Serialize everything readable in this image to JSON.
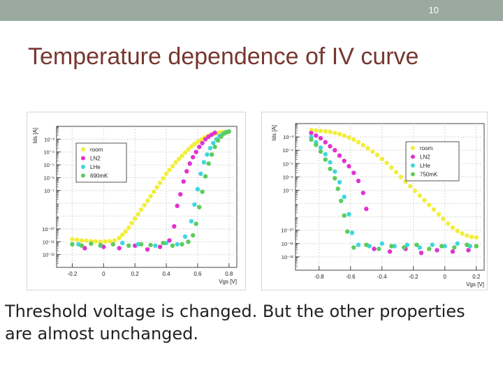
{
  "slide": {
    "page_number": "10",
    "title": "Temperature dependence of IV curve",
    "caption": "Threshold voltage is changed. But the other properties are almost unchanged."
  },
  "colors": {
    "header_bar": "#9aaaa1",
    "title": "#77372f",
    "room": "#f2ee3a",
    "LN2": "#e033cf",
    "LHe": "#3fd6e0",
    "cold": "#5ccc5c"
  },
  "chart_data": [
    {
      "type": "scatter",
      "ylabel": "Ids [A]",
      "xlabel": "Vgs [V]",
      "y_scale": "log",
      "xlim": [
        -0.3,
        0.85
      ],
      "ylim_exp": [
        -13,
        -2
      ],
      "x_ticks": [
        -0.2,
        0,
        0.2,
        0.4,
        0.6,
        0.8
      ],
      "x_tick_labels": [
        "-0.2",
        "0",
        "0.2",
        "0.4",
        "0.6",
        "0.8"
      ],
      "y_tick_exps": [
        -12,
        -11,
        -10,
        -7,
        -6,
        -5,
        -4,
        -3
      ],
      "y_tick_labels": [
        "10⁻¹²",
        "10⁻¹¹",
        "10⁻¹⁰",
        "10⁻⁷",
        "10⁻⁶",
        "10⁻⁵",
        "10⁻⁴",
        "10⁻³"
      ],
      "legend_position": "top-left",
      "grid": true,
      "series": [
        {
          "name": "room",
          "color": "#f2ee3a",
          "points": [
            [
              -0.2,
              -10.8
            ],
            [
              -0.17,
              -10.85
            ],
            [
              -0.14,
              -10.9
            ],
            [
              -0.11,
              -10.92
            ],
            [
              -0.08,
              -10.95
            ],
            [
              -0.05,
              -10.97
            ],
            [
              -0.02,
              -11.0
            ],
            [
              0.01,
              -10.98
            ],
            [
              0.04,
              -10.95
            ],
            [
              0.07,
              -10.9
            ],
            [
              0.1,
              -10.7
            ],
            [
              0.12,
              -10.45
            ],
            [
              0.14,
              -10.2
            ],
            [
              0.16,
              -9.9
            ],
            [
              0.18,
              -9.55
            ],
            [
              0.2,
              -9.2
            ],
            [
              0.22,
              -8.85
            ],
            [
              0.24,
              -8.5
            ],
            [
              0.26,
              -8.15
            ],
            [
              0.28,
              -7.8
            ],
            [
              0.3,
              -7.45
            ],
            [
              0.32,
              -7.1
            ],
            [
              0.34,
              -6.75
            ],
            [
              0.36,
              -6.4
            ],
            [
              0.38,
              -6.05
            ],
            [
              0.4,
              -5.7
            ],
            [
              0.42,
              -5.4
            ],
            [
              0.44,
              -5.1
            ],
            [
              0.46,
              -4.8
            ],
            [
              0.48,
              -4.55
            ],
            [
              0.5,
              -4.3
            ],
            [
              0.52,
              -4.05
            ],
            [
              0.54,
              -3.8
            ],
            [
              0.56,
              -3.58
            ],
            [
              0.58,
              -3.38
            ],
            [
              0.6,
              -3.2
            ],
            [
              0.62,
              -3.05
            ],
            [
              0.64,
              -2.9
            ],
            [
              0.66,
              -2.78
            ],
            [
              0.68,
              -2.68
            ],
            [
              0.7,
              -2.6
            ],
            [
              0.72,
              -2.53
            ],
            [
              0.74,
              -2.48
            ],
            [
              0.76,
              -2.44
            ],
            [
              0.78,
              -2.42
            ]
          ]
        },
        {
          "name": "LN2",
          "color": "#e033cf",
          "points": [
            [
              -0.12,
              -11.5
            ],
            [
              0.0,
              -11.4
            ],
            [
              0.1,
              -11.5
            ],
            [
              0.2,
              -11.3
            ],
            [
              0.28,
              -11.6
            ],
            [
              0.36,
              -11.4
            ],
            [
              0.42,
              -10.9
            ],
            [
              0.45,
              -9.8
            ],
            [
              0.47,
              -8.2
            ],
            [
              0.49,
              -7.3
            ],
            [
              0.51,
              -6.3
            ],
            [
              0.53,
              -5.5
            ],
            [
              0.55,
              -4.9
            ],
            [
              0.57,
              -4.4
            ],
            [
              0.59,
              -4.0
            ],
            [
              0.61,
              -3.6
            ],
            [
              0.63,
              -3.3
            ],
            [
              0.65,
              -3.0
            ],
            [
              0.67,
              -2.8
            ],
            [
              0.69,
              -2.65
            ],
            [
              0.71,
              -2.5
            ]
          ]
        },
        {
          "name": "LHe",
          "color": "#3fd6e0",
          "points": [
            [
              -0.16,
              -11.2
            ],
            [
              -0.02,
              -11.3
            ],
            [
              0.12,
              -11.1
            ],
            [
              0.22,
              -11.2
            ],
            [
              0.33,
              -11.3
            ],
            [
              0.4,
              -11.1
            ],
            [
              0.47,
              -11.2
            ],
            [
              0.52,
              -10.6
            ],
            [
              0.56,
              -9.4
            ],
            [
              0.58,
              -8.1
            ],
            [
              0.6,
              -6.9
            ],
            [
              0.62,
              -5.7
            ],
            [
              0.64,
              -4.8
            ],
            [
              0.66,
              -4.2
            ],
            [
              0.68,
              -3.7
            ],
            [
              0.7,
              -3.3
            ],
            [
              0.72,
              -3.0
            ],
            [
              0.74,
              -2.75
            ],
            [
              0.76,
              -2.6
            ],
            [
              0.78,
              -2.45
            ]
          ]
        },
        {
          "name": "690mK",
          "color": "#5ccc5c",
          "points": [
            [
              -0.2,
              -11.2
            ],
            [
              -0.14,
              -11.3
            ],
            [
              -0.08,
              -11.15
            ],
            [
              -0.02,
              -11.25
            ],
            [
              0.06,
              -11.2
            ],
            [
              0.16,
              -11.3
            ],
            [
              0.24,
              -11.2
            ],
            [
              0.3,
              -11.25
            ],
            [
              0.38,
              -11.1
            ],
            [
              0.44,
              -11.3
            ],
            [
              0.5,
              -11.2
            ],
            [
              0.54,
              -11.0
            ],
            [
              0.57,
              -10.5
            ],
            [
              0.59,
              -9.6
            ],
            [
              0.61,
              -8.3
            ],
            [
              0.63,
              -7.1
            ],
            [
              0.65,
              -5.9
            ],
            [
              0.67,
              -4.9
            ],
            [
              0.69,
              -4.2
            ],
            [
              0.71,
              -3.6
            ],
            [
              0.73,
              -3.1
            ],
            [
              0.75,
              -2.8
            ],
            [
              0.77,
              -2.55
            ],
            [
              0.79,
              -2.45
            ],
            [
              0.8,
              -2.4
            ]
          ]
        }
      ]
    },
    {
      "type": "scatter",
      "ylabel": "Ids [A]",
      "xlabel": "Vgs [V]",
      "y_scale": "log",
      "xlim": [
        -0.95,
        0.25
      ],
      "ylim_exp": [
        -13,
        -2
      ],
      "x_ticks": [
        -0.8,
        -0.6,
        -0.4,
        -0.2,
        0,
        0.2
      ],
      "x_tick_labels": [
        "-0.8",
        "-0.6",
        "-0.4",
        "-0.2",
        "0",
        "0.2"
      ],
      "y_tick_exps": [
        -12,
        -11,
        -10,
        -7,
        -6,
        -5,
        -4,
        -3
      ],
      "y_tick_labels": [
        "10⁻¹²",
        "10⁻¹¹",
        "10⁻¹⁰",
        "10⁻⁷",
        "10⁻⁶",
        "10⁻⁵",
        "10⁻⁴",
        "10⁻³"
      ],
      "legend_position": "top-right",
      "grid": true,
      "series": [
        {
          "name": "room",
          "color": "#f2ee3a",
          "points": [
            [
              -0.85,
              -2.5
            ],
            [
              -0.82,
              -2.52
            ],
            [
              -0.79,
              -2.55
            ],
            [
              -0.76,
              -2.58
            ],
            [
              -0.73,
              -2.62
            ],
            [
              -0.7,
              -2.7
            ],
            [
              -0.67,
              -2.78
            ],
            [
              -0.64,
              -2.9
            ],
            [
              -0.61,
              -3.05
            ],
            [
              -0.58,
              -3.2
            ],
            [
              -0.55,
              -3.4
            ],
            [
              -0.52,
              -3.62
            ],
            [
              -0.49,
              -3.85
            ],
            [
              -0.46,
              -4.1
            ],
            [
              -0.43,
              -4.35
            ],
            [
              -0.4,
              -4.65
            ],
            [
              -0.37,
              -4.95
            ],
            [
              -0.34,
              -5.3
            ],
            [
              -0.31,
              -5.65
            ],
            [
              -0.28,
              -6.0
            ],
            [
              -0.25,
              -6.35
            ],
            [
              -0.22,
              -6.7
            ],
            [
              -0.19,
              -7.05
            ],
            [
              -0.16,
              -7.4
            ],
            [
              -0.13,
              -7.75
            ],
            [
              -0.1,
              -8.1
            ],
            [
              -0.07,
              -8.45
            ],
            [
              -0.04,
              -8.8
            ],
            [
              -0.01,
              -9.15
            ],
            [
              0.02,
              -9.5
            ],
            [
              0.05,
              -9.8
            ],
            [
              0.08,
              -10.05
            ],
            [
              0.11,
              -10.25
            ],
            [
              0.14,
              -10.4
            ],
            [
              0.17,
              -10.5
            ],
            [
              0.2,
              -10.55
            ]
          ]
        },
        {
          "name": "LN2",
          "color": "#e033cf",
          "points": [
            [
              -0.85,
              -2.7
            ],
            [
              -0.82,
              -2.9
            ],
            [
              -0.79,
              -3.1
            ],
            [
              -0.76,
              -3.4
            ],
            [
              -0.73,
              -3.7
            ],
            [
              -0.7,
              -4.0
            ],
            [
              -0.67,
              -4.4
            ],
            [
              -0.64,
              -4.8
            ],
            [
              -0.61,
              -5.2
            ],
            [
              -0.58,
              -5.7
            ],
            [
              -0.55,
              -6.3
            ],
            [
              -0.52,
              -7.2
            ],
            [
              -0.5,
              -8.4
            ],
            [
              -0.45,
              -11.4
            ],
            [
              -0.35,
              -11.6
            ],
            [
              -0.25,
              -11.4
            ],
            [
              -0.15,
              -11.7
            ],
            [
              -0.05,
              -11.5
            ],
            [
              0.05,
              -11.6
            ],
            [
              0.15,
              -11.5
            ]
          ]
        },
        {
          "name": "LHe",
          "color": "#3fd6e0",
          "points": [
            [
              -0.85,
              -3.0
            ],
            [
              -0.82,
              -3.4
            ],
            [
              -0.79,
              -3.8
            ],
            [
              -0.76,
              -4.3
            ],
            [
              -0.73,
              -4.9
            ],
            [
              -0.7,
              -5.6
            ],
            [
              -0.67,
              -6.4
            ],
            [
              -0.64,
              -7.5
            ],
            [
              -0.61,
              -8.8
            ],
            [
              -0.59,
              -10.2
            ],
            [
              -0.55,
              -11.1
            ],
            [
              -0.48,
              -11.2
            ],
            [
              -0.4,
              -11.0
            ],
            [
              -0.32,
              -11.2
            ],
            [
              -0.24,
              -11.1
            ],
            [
              -0.16,
              -11.3
            ],
            [
              -0.08,
              -11.1
            ],
            [
              0.0,
              -11.2
            ],
            [
              0.08,
              -11.0
            ],
            [
              0.16,
              -11.2
            ]
          ]
        },
        {
          "name": "750mK",
          "color": "#5ccc5c",
          "points": [
            [
              -0.85,
              -3.2
            ],
            [
              -0.82,
              -3.6
            ],
            [
              -0.79,
              -4.1
            ],
            [
              -0.76,
              -4.7
            ],
            [
              -0.73,
              -5.4
            ],
            [
              -0.7,
              -6.1
            ],
            [
              -0.68,
              -6.9
            ],
            [
              -0.66,
              -7.8
            ],
            [
              -0.64,
              -8.9
            ],
            [
              -0.62,
              -10.1
            ],
            [
              -0.58,
              -11.3
            ],
            [
              -0.5,
              -11.1
            ],
            [
              -0.42,
              -11.4
            ],
            [
              -0.34,
              -11.2
            ],
            [
              -0.26,
              -11.3
            ],
            [
              -0.18,
              -11.1
            ],
            [
              -0.1,
              -11.4
            ],
            [
              -0.02,
              -11.2
            ],
            [
              0.06,
              -11.3
            ],
            [
              0.14,
              -11.1
            ],
            [
              0.2,
              -11.2
            ]
          ]
        }
      ]
    }
  ]
}
